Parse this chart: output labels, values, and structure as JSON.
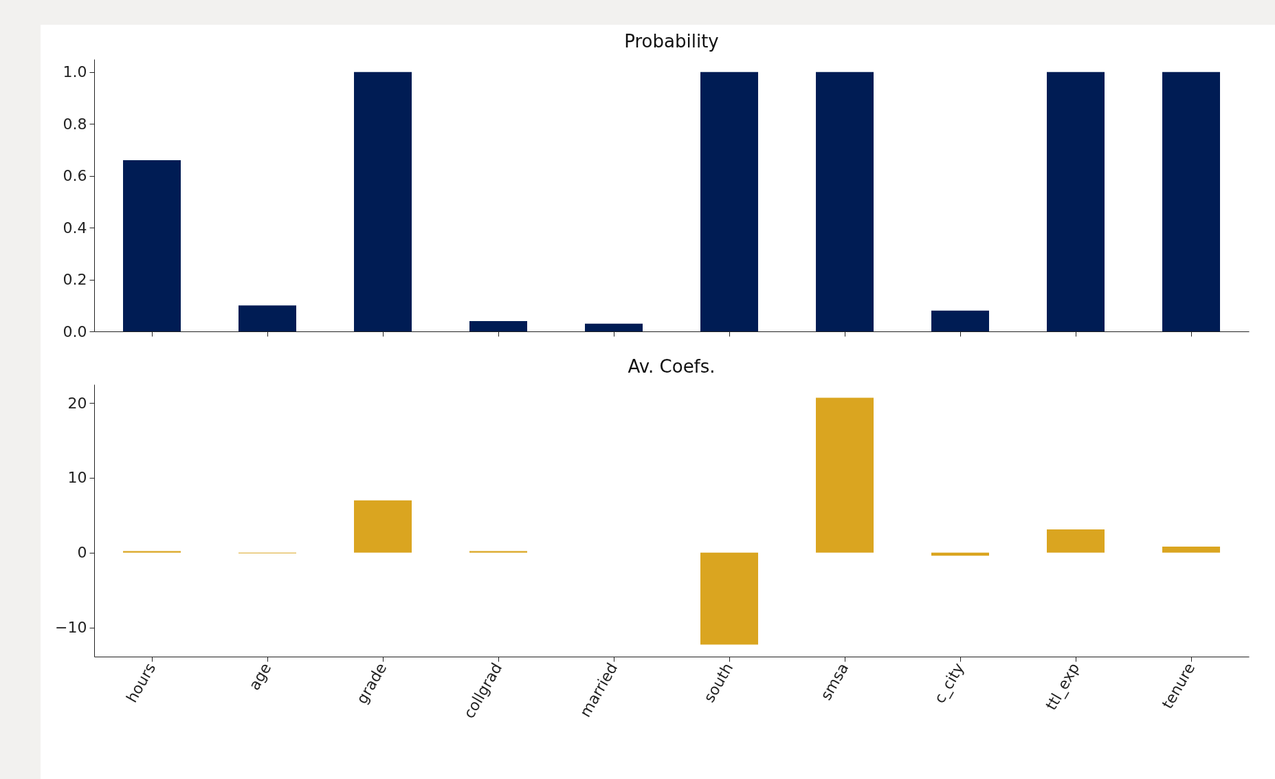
{
  "chart_data": [
    {
      "type": "bar",
      "title": "Probability",
      "categories": [
        null,
        null,
        null,
        null,
        null,
        null,
        null,
        null,
        null,
        null
      ],
      "values": [
        0.66,
        0.1,
        1.0,
        0.04,
        0.03,
        1.0,
        1.0,
        0.08,
        1.0,
        1.0
      ],
      "color": "#001c54",
      "ylim": [
        0,
        1.05
      ],
      "yticks": [
        {
          "value": 0,
          "label": "0.0"
        },
        {
          "value": 0.2,
          "label": "0.2"
        },
        {
          "value": 0.4,
          "label": "0.4"
        },
        {
          "value": 0.6,
          "label": "0.6"
        },
        {
          "value": 0.8,
          "label": "0.8"
        },
        {
          "value": 1,
          "label": "1.0"
        }
      ],
      "tick_labels": "y"
    },
    {
      "type": "bar",
      "title": "Av. Coefs.",
      "categories": [
        "hours",
        "age",
        "grade",
        "collgrad",
        "married",
        "south",
        "smsa",
        "c_city",
        "ttl_exp",
        "tenure"
      ],
      "values": [
        0.2,
        -0.1,
        7.0,
        0.2,
        0,
        -12.3,
        20.7,
        -0.4,
        3.1,
        0.8
      ],
      "color": "#daa520",
      "ylim": [
        -13.9,
        22.5
      ],
      "yticks": [
        {
          "value": -10,
          "label": "−10"
        },
        0,
        10,
        20
      ]
    }
  ]
}
